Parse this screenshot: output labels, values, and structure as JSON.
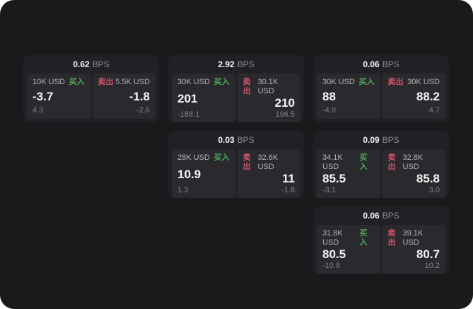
{
  "page": {
    "background_color": "#1a1a1c",
    "card_color": "#212125",
    "panel_color": "#2a2a2e",
    "buy_color": "#4fa85a",
    "sell_color": "#d4536a",
    "bps_unit": "BPS",
    "buy_label": "买入",
    "sell_label": "卖出"
  },
  "cards": [
    {
      "bps": "0.62",
      "bps_unit": "BPS",
      "buy": {
        "notional": "10K USD",
        "side": "买入",
        "price": "-3.7",
        "delta": "4.3"
      },
      "sell": {
        "notional": "5.5K USD",
        "side": "卖出",
        "price": "-1.8",
        "delta": "-2.6"
      }
    },
    {
      "bps": "2.92",
      "bps_unit": "BPS",
      "buy": {
        "notional": "30K USD",
        "side": "买入",
        "price": "201",
        "delta": "-188.1"
      },
      "sell": {
        "notional": "30.1K USD",
        "side": "卖出",
        "price": "210",
        "delta": "196.5"
      }
    },
    {
      "bps": "0.06",
      "bps_unit": "BPS",
      "buy": {
        "notional": "30K USD",
        "side": "买入",
        "price": "88",
        "delta": "-4.9"
      },
      "sell": {
        "notional": "30K USD",
        "side": "卖出",
        "price": "88.2",
        "delta": "4.7"
      }
    },
    {
      "bps": "0.03",
      "bps_unit": "BPS",
      "buy": {
        "notional": "28K USD",
        "side": "买入",
        "price": "10.9",
        "delta": "1.3"
      },
      "sell": {
        "notional": "32.6K USD",
        "side": "卖出",
        "price": "11",
        "delta": "-1.8"
      }
    },
    {
      "bps": "0.09",
      "bps_unit": "BPS",
      "buy": {
        "notional": "34.1K USD",
        "side": "买入",
        "price": "85.5",
        "delta": "-3.1"
      },
      "sell": {
        "notional": "32.8K USD",
        "side": "卖出",
        "price": "85.8",
        "delta": "3.0"
      }
    },
    {
      "bps": "0.06",
      "bps_unit": "BPS",
      "buy": {
        "notional": "31.8K USD",
        "side": "买入",
        "price": "80.5",
        "delta": "-10.8"
      },
      "sell": {
        "notional": "39.1K USD",
        "side": "卖出",
        "price": "80.7",
        "delta": "10.2"
      }
    }
  ]
}
